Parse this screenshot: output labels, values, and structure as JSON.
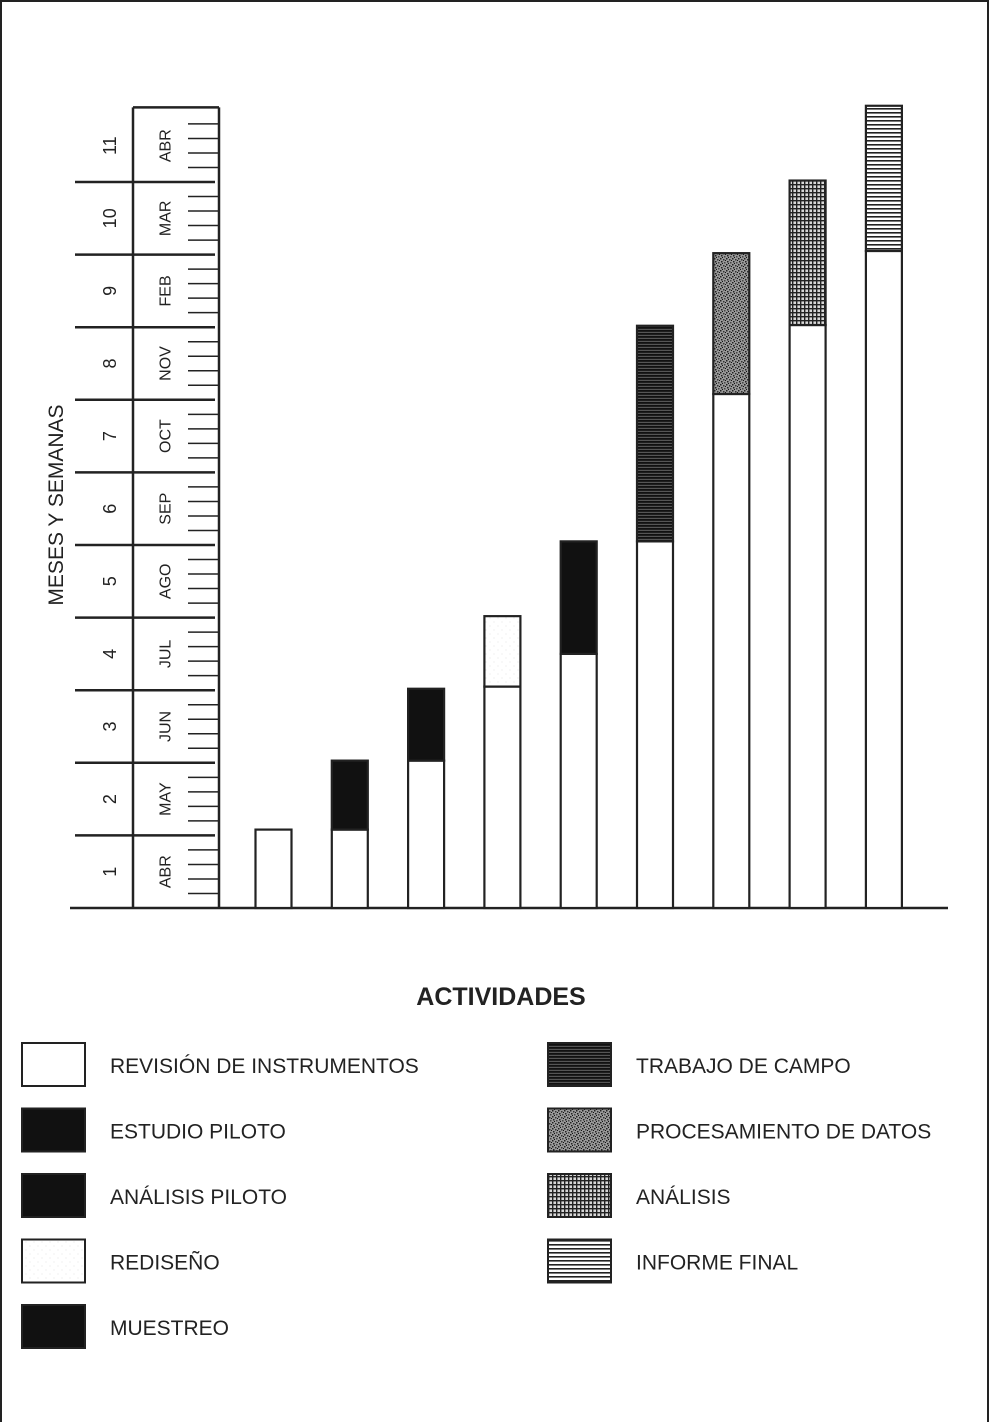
{
  "chart_data": {
    "type": "bar",
    "ylabel": "MESES Y SEMANAS",
    "xlabel": "ACTIVIDADES",
    "y_month_numbers": [
      "1",
      "2",
      "3",
      "4",
      "5",
      "6",
      "7",
      "8",
      "9",
      "10",
      "11"
    ],
    "y_month_names": [
      "ABR",
      "MAY",
      "JUN",
      "JUL",
      "AGO",
      "SEP",
      "OCT",
      "NOV",
      "FEB",
      "MAR",
      "ABR"
    ],
    "weeks_per_month": 4,
    "ylim": [
      0,
      11
    ],
    "bars": [
      {
        "bottom": {
          "activity": "REVISIÓN DE INSTRUMENTOS",
          "value": 1.08
        }
      },
      {
        "bottom": {
          "activity": "REVISIÓN DE INSTRUMENTOS",
          "value": 1.08
        },
        "top": {
          "activity": "ESTUDIO PILOTO",
          "value": 2.03
        }
      },
      {
        "bottom": {
          "activity": "REVISIÓN DE INSTRUMENTOS",
          "value": 2.03
        },
        "top": {
          "activity": "ANÁLISIS PILOTO",
          "value": 3.02
        }
      },
      {
        "bottom": {
          "activity": "REVISIÓN DE INSTRUMENTOS",
          "value": 3.05
        },
        "top": {
          "activity": "REDISEÑO",
          "value": 4.02
        }
      },
      {
        "bottom": {
          "activity": "REVISIÓN DE INSTRUMENTOS",
          "value": 3.5
        },
        "top": {
          "activity": "MUESTREO",
          "value": 5.05
        }
      },
      {
        "bottom": {
          "activity": "REVISIÓN DE INSTRUMENTOS",
          "value": 5.05
        },
        "top": {
          "activity": "TRABAJO DE CAMPO",
          "value": 8.02
        }
      },
      {
        "bottom": {
          "activity": "REVISIÓN DE INSTRUMENTOS",
          "value": 7.08
        },
        "top": {
          "activity": "PROCESAMIENTO DE DATOS",
          "value": 9.02
        }
      },
      {
        "bottom": {
          "activity": "REVISIÓN DE INSTRUMENTOS",
          "value": 8.03
        },
        "top": {
          "activity": "ANÁLISIS",
          "value": 10.02
        }
      },
      {
        "bottom": {
          "activity": "REVISIÓN DE INSTRUMENTOS",
          "value": 9.05
        },
        "top": {
          "activity": "INFORME FINAL",
          "value": 11.05
        }
      }
    ],
    "legend": [
      {
        "label": "REVISIÓN DE INSTRUMENTOS",
        "pattern": "white"
      },
      {
        "label": "ESTUDIO PILOTO",
        "pattern": "black"
      },
      {
        "label": "ANÁLISIS PILOTO",
        "pattern": "black"
      },
      {
        "label": "REDISEÑO",
        "pattern": "white-dotted"
      },
      {
        "label": "MUESTREO",
        "pattern": "black"
      },
      {
        "label": "TRABAJO DE CAMPO",
        "pattern": "dark-horizontal-lines"
      },
      {
        "label": "PROCESAMIENTO DE DATOS",
        "pattern": "dark-speckle"
      },
      {
        "label": "ANÁLISIS",
        "pattern": "crosshatch-grid"
      },
      {
        "label": "INFORME FINAL",
        "pattern": "horizontal-lines"
      }
    ],
    "legend_placement": "bottom",
    "grid": false
  }
}
